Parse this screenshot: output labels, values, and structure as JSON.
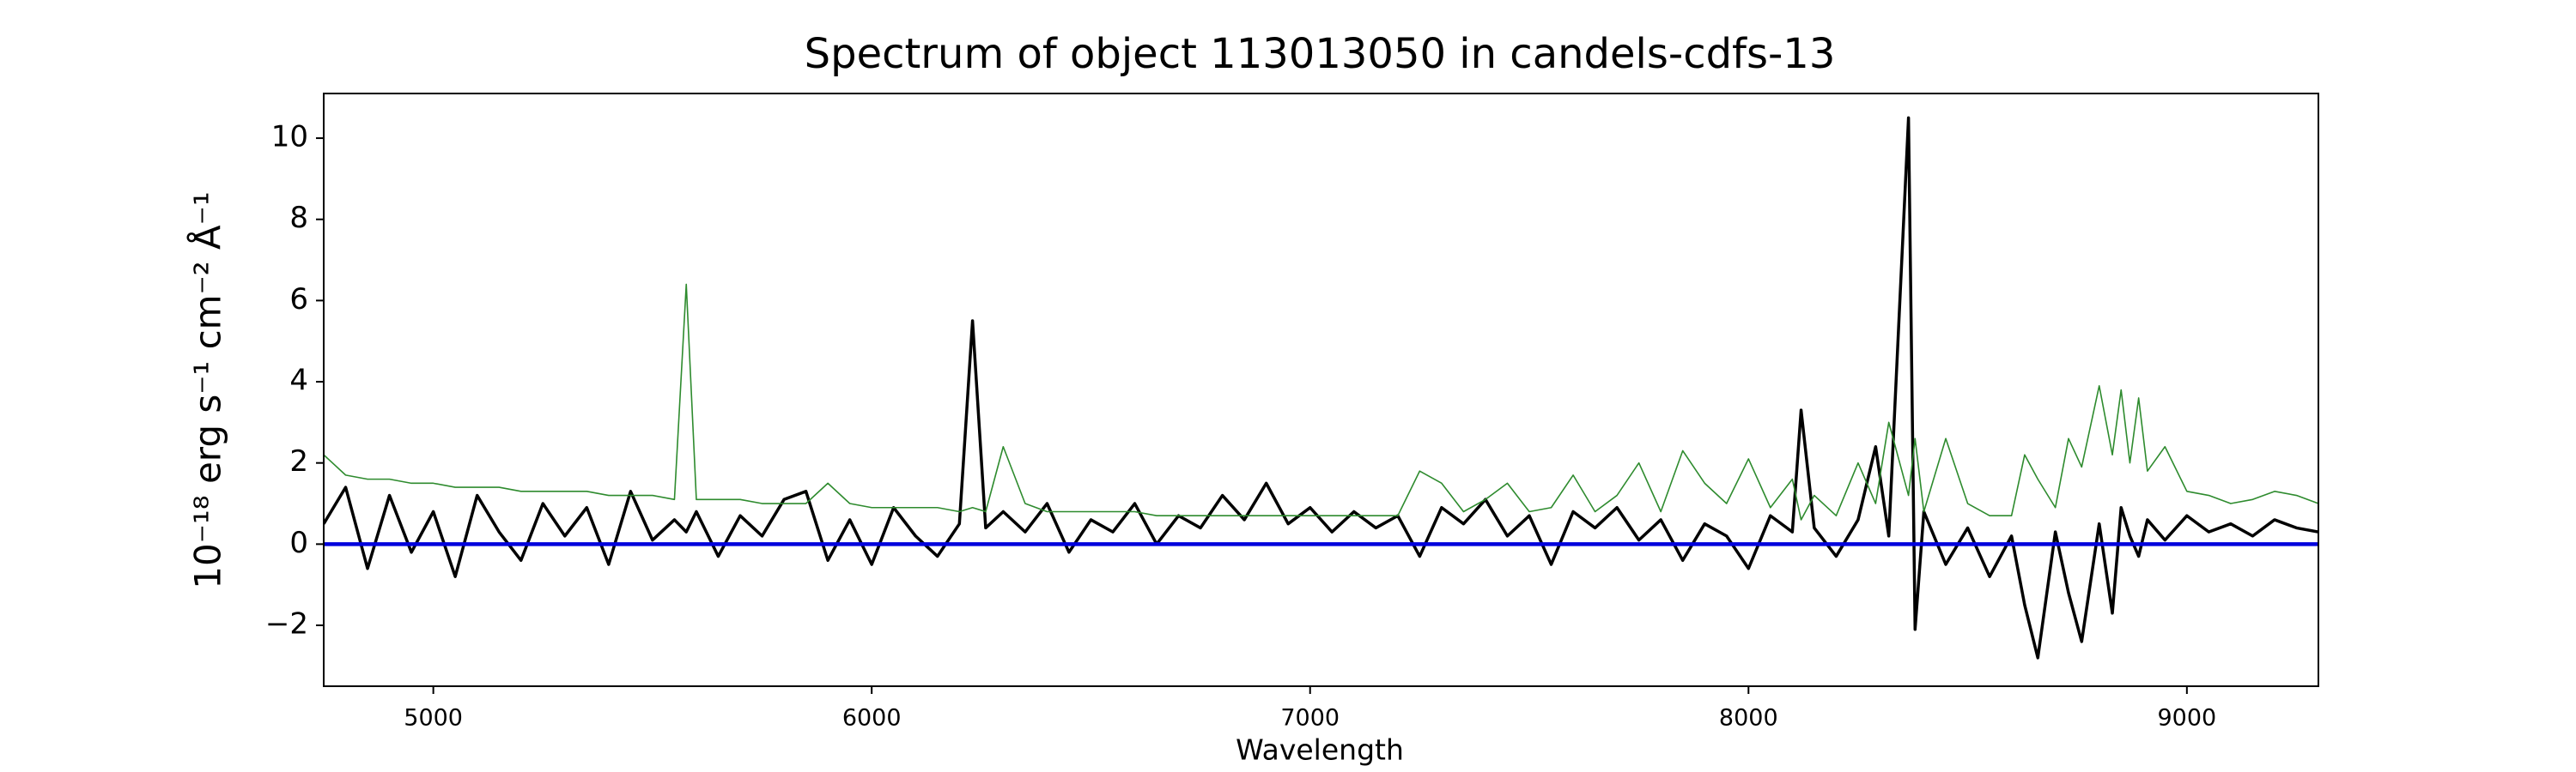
{
  "chart_data": {
    "type": "line",
    "title": "Spectrum of object 113013050 in candels-cdfs-13",
    "xlabel": "Wavelength",
    "ylabel": "10⁻¹⁸ erg s⁻¹ cm⁻² Å⁻¹",
    "x": [
      4750,
      4800,
      4850,
      4900,
      4950,
      5000,
      5050,
      5100,
      5150,
      5200,
      5250,
      5300,
      5350,
      5400,
      5450,
      5500,
      5550,
      5577,
      5600,
      5650,
      5700,
      5750,
      5800,
      5850,
      5900,
      5950,
      6000,
      6050,
      6100,
      6150,
      6200,
      6230,
      6260,
      6300,
      6350,
      6400,
      6450,
      6500,
      6550,
      6600,
      6650,
      6700,
      6750,
      6800,
      6850,
      6900,
      6950,
      7000,
      7050,
      7100,
      7150,
      7200,
      7250,
      7300,
      7350,
      7400,
      7450,
      7500,
      7550,
      7600,
      7650,
      7700,
      7750,
      7800,
      7850,
      7900,
      7950,
      8000,
      8050,
      8100,
      8120,
      8150,
      8200,
      8250,
      8290,
      8320,
      8365,
      8380,
      8400,
      8450,
      8500,
      8550,
      8600,
      8630,
      8660,
      8700,
      8730,
      8760,
      8800,
      8830,
      8850,
      8870,
      8890,
      8910,
      8950,
      9000,
      9050,
      9100,
      9150,
      9200,
      9250,
      9300
    ],
    "series": [
      {
        "color": "#000000",
        "linewidth": 3.5,
        "values": [
          0.5,
          1.4,
          -0.6,
          1.2,
          -0.2,
          0.8,
          -0.8,
          1.2,
          0.3,
          -0.4,
          1.0,
          0.2,
          0.9,
          -0.5,
          1.3,
          0.1,
          0.6,
          0.3,
          0.8,
          -0.3,
          0.7,
          0.2,
          1.1,
          1.3,
          -0.4,
          0.6,
          -0.5,
          0.9,
          0.2,
          -0.3,
          0.5,
          5.5,
          0.4,
          0.8,
          0.3,
          1.0,
          -0.2,
          0.6,
          0.3,
          1.0,
          0.0,
          0.7,
          0.4,
          1.2,
          0.6,
          1.5,
          0.5,
          0.9,
          0.3,
          0.8,
          0.4,
          0.7,
          -0.3,
          0.9,
          0.5,
          1.1,
          0.2,
          0.7,
          -0.5,
          0.8,
          0.4,
          0.9,
          0.1,
          0.6,
          -0.4,
          0.5,
          0.2,
          -0.6,
          0.7,
          0.3,
          3.3,
          0.4,
          -0.3,
          0.6,
          2.4,
          0.2,
          10.5,
          -2.1,
          0.8,
          -0.5,
          0.4,
          -0.8,
          0.2,
          -1.5,
          -2.8,
          0.3,
          -1.2,
          -2.4,
          0.5,
          -1.7,
          0.9,
          0.2,
          -0.3,
          0.6,
          0.1,
          0.7,
          0.3,
          0.5,
          0.2,
          0.6,
          0.4,
          0.3
        ]
      },
      {
        "color": "#2e8b2e",
        "linewidth": 1.6,
        "values": [
          2.2,
          1.7,
          1.6,
          1.6,
          1.5,
          1.5,
          1.4,
          1.4,
          1.4,
          1.3,
          1.3,
          1.3,
          1.3,
          1.2,
          1.2,
          1.2,
          1.1,
          6.4,
          1.1,
          1.1,
          1.1,
          1.0,
          1.0,
          1.0,
          1.5,
          1.0,
          0.9,
          0.9,
          0.9,
          0.9,
          0.8,
          0.9,
          0.8,
          2.4,
          1.0,
          0.8,
          0.8,
          0.8,
          0.8,
          0.8,
          0.7,
          0.7,
          0.7,
          0.7,
          0.7,
          0.7,
          0.7,
          0.7,
          0.7,
          0.7,
          0.7,
          0.7,
          1.8,
          1.5,
          0.8,
          1.1,
          1.5,
          0.8,
          0.9,
          1.7,
          0.8,
          1.2,
          2.0,
          0.8,
          2.3,
          1.5,
          1.0,
          2.1,
          0.9,
          1.6,
          0.6,
          1.2,
          0.7,
          2.0,
          1.0,
          3.0,
          1.2,
          2.6,
          0.8,
          2.6,
          1.0,
          0.7,
          0.7,
          2.2,
          1.6,
          0.9,
          2.6,
          1.9,
          3.9,
          2.2,
          3.8,
          2.0,
          3.6,
          1.8,
          2.4,
          1.3,
          1.2,
          1.0,
          1.1,
          1.3,
          1.2,
          1.0
        ]
      },
      {
        "color": "#0000dd",
        "linewidth": 4.5,
        "values": [
          0,
          0,
          0,
          0,
          0,
          0,
          0,
          0,
          0,
          0,
          0,
          0,
          0,
          0,
          0,
          0,
          0,
          0,
          0,
          0,
          0,
          0,
          0,
          0,
          0,
          0,
          0,
          0,
          0,
          0,
          0,
          0,
          0,
          0,
          0,
          0,
          0,
          0,
          0,
          0,
          0,
          0,
          0,
          0,
          0,
          0,
          0,
          0,
          0,
          0,
          0,
          0,
          0,
          0,
          0,
          0,
          0,
          0,
          0,
          0,
          0,
          0,
          0,
          0,
          0,
          0,
          0,
          0,
          0,
          0,
          0,
          0,
          0,
          0,
          0,
          0,
          0,
          0,
          0,
          0,
          0,
          0,
          0,
          0,
          0,
          0,
          0,
          0,
          0,
          0,
          0,
          0,
          0,
          0,
          0,
          0,
          0,
          0,
          0,
          0,
          0,
          0
        ]
      }
    ],
    "xlim": [
      4750,
      9300
    ],
    "xticks": [
      5000,
      6000,
      7000,
      8000,
      9000
    ],
    "ylim": [
      -3.5,
      11.1
    ],
    "yticks": [
      {
        "value": -2,
        "label": "−2"
      },
      0,
      2,
      4,
      6,
      8,
      10
    ],
    "grid": false
  }
}
